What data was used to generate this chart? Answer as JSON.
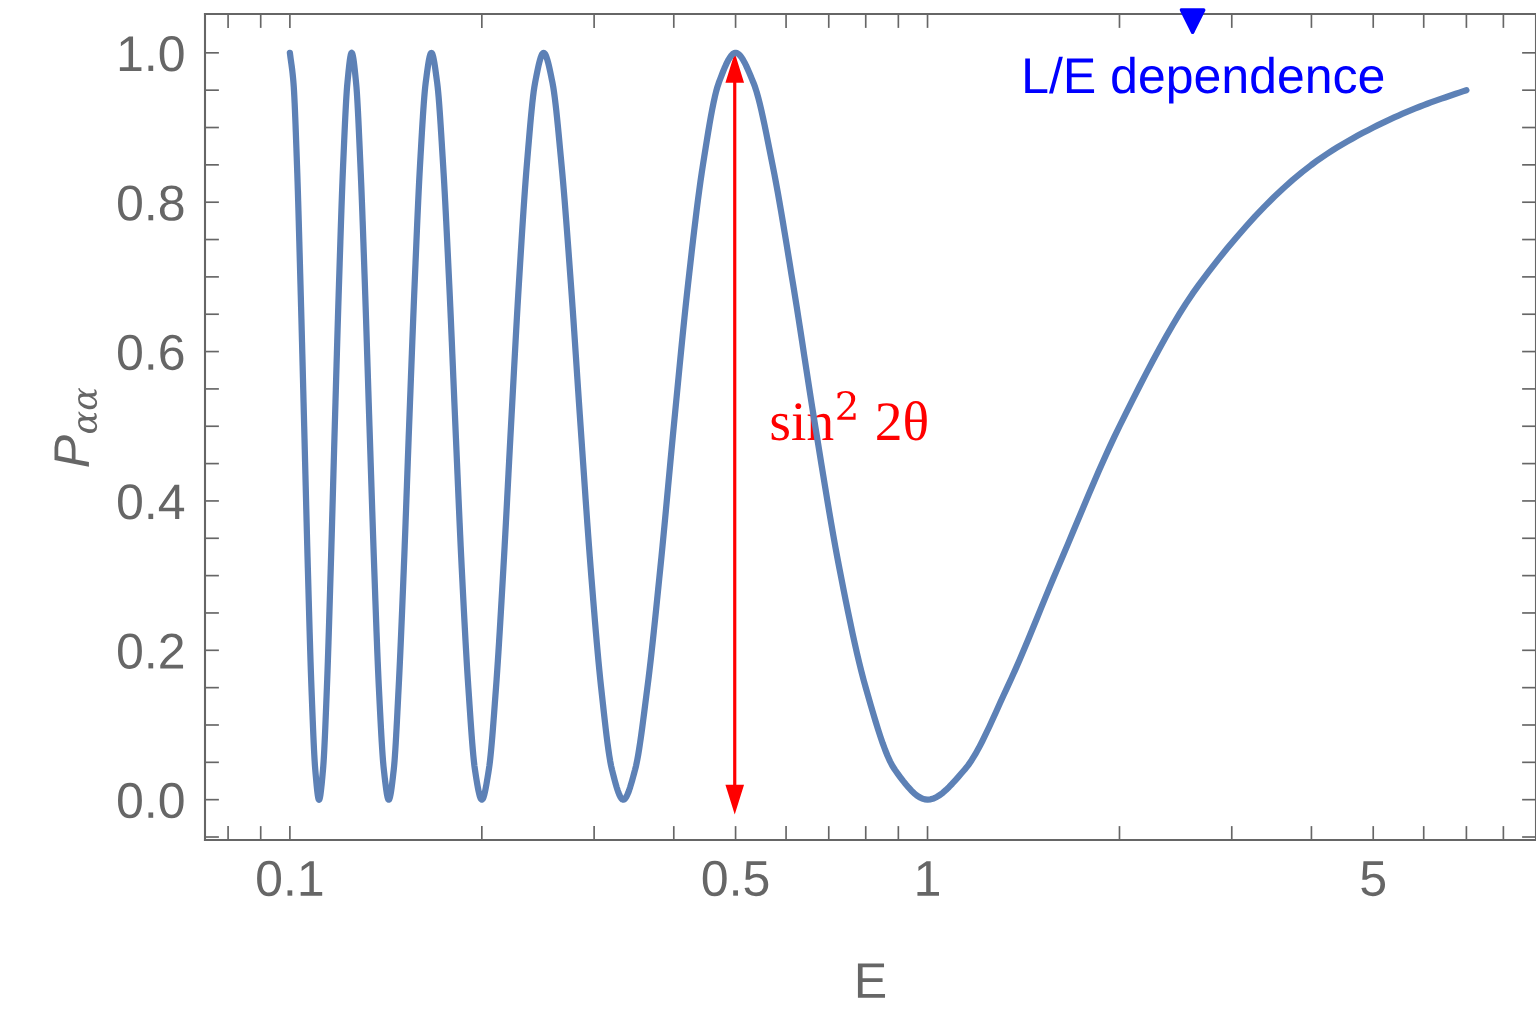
{
  "chart_data": {
    "type": "line",
    "xlabel": "E",
    "ylabel": "P$_{αα}$",
    "log": "x",
    "xlim": [
      0.0736,
      9
    ],
    "ylim": [
      -0.054,
      1.052
    ],
    "xticks": [
      {
        "value": 0.08,
        "label": null
      },
      {
        "value": 0.09,
        "label": null
      },
      0.1,
      {
        "value": 0.2,
        "label": null
      },
      {
        "value": 0.3,
        "label": null
      },
      {
        "value": 0.4,
        "label": null
      },
      0.5,
      {
        "value": 0.6,
        "label": null
      },
      {
        "value": 0.7,
        "label": null
      },
      {
        "value": 0.8,
        "label": null
      },
      {
        "value": 0.9,
        "label": null
      },
      1,
      {
        "value": 2,
        "label": null
      },
      {
        "value": 3,
        "label": null
      },
      {
        "value": 4,
        "label": null
      },
      5,
      {
        "value": 6,
        "label": null
      },
      {
        "value": 7,
        "label": null
      },
      {
        "value": 8,
        "label": null
      },
      {
        "value": 9,
        "label": null
      }
    ],
    "yticks": [
      {
        "value": -0.05,
        "label": null
      },
      {
        "value": 0,
        "label": "0.0"
      },
      {
        "value": 0.05,
        "label": null
      },
      {
        "value": 0.1,
        "label": null
      },
      {
        "value": 0.15,
        "label": null
      },
      0.2,
      {
        "value": 0.25,
        "label": null
      },
      {
        "value": 0.3,
        "label": null
      },
      {
        "value": 0.35,
        "label": null
      },
      0.4,
      {
        "value": 0.45,
        "label": null
      },
      {
        "value": 0.5,
        "label": null
      },
      {
        "value": 0.55,
        "label": null
      },
      0.6,
      {
        "value": 0.65,
        "label": null
      },
      {
        "value": 0.7,
        "label": null
      },
      {
        "value": 0.75,
        "label": null
      },
      0.8,
      {
        "value": 0.85,
        "label": null
      },
      {
        "value": 0.9,
        "label": null
      },
      {
        "value": 0.95,
        "label": null
      },
      {
        "value": 1,
        "label": "1.0"
      }
    ],
    "grid": false,
    "legend": false,
    "series": [
      {
        "color": "#5d81b6",
        "x": [
          0.1,
          0.1013,
          0.1026,
          0.1039,
          0.1053,
          0.1067,
          0.1081,
          0.1096,
          0.1111,
          0.1127,
          0.1143,
          0.1159,
          0.1176,
          0.1194,
          0.1212,
          0.1231,
          0.125,
          0.127,
          0.129,
          0.1311,
          0.1333,
          0.1356,
          0.1379,
          0.1404,
          0.1429,
          0.1455,
          0.1481,
          0.1509,
          0.1538,
          0.1569,
          0.16,
          0.1633,
          0.1667,
          0.1702,
          0.1739,
          0.1778,
          0.1818,
          0.186,
          0.1905,
          0.1951,
          0.2,
          0.2051,
          0.2105,
          0.2162,
          0.2222,
          0.2286,
          0.2353,
          0.2424,
          0.25,
          0.2581,
          0.2667,
          0.2759,
          0.2857,
          0.2963,
          0.3077,
          0.32,
          0.3333,
          0.3478,
          0.3636,
          0.381,
          0.4,
          0.4211,
          0.4444,
          0.4706,
          0.5,
          0.5333,
          0.5714,
          0.6154,
          0.6667,
          0.7273,
          0.8,
          0.8889,
          1,
          1.143,
          1.333,
          1.6,
          2,
          2.667,
          4,
          5,
          6,
          7
        ],
        "values": [
          1,
          0.96,
          0.85,
          0.69,
          0.5,
          0.31,
          0.15,
          0.04,
          0,
          0.04,
          0.15,
          0.31,
          0.5,
          0.69,
          0.85,
          0.96,
          1,
          0.96,
          0.85,
          0.69,
          0.5,
          0.31,
          0.15,
          0.04,
          0,
          0.04,
          0.15,
          0.31,
          0.5,
          0.69,
          0.85,
          0.96,
          1,
          0.96,
          0.85,
          0.69,
          0.5,
          0.31,
          0.15,
          0.04,
          0,
          0.04,
          0.15,
          0.31,
          0.5,
          0.69,
          0.85,
          0.96,
          1,
          0.96,
          0.85,
          0.69,
          0.5,
          0.31,
          0.15,
          0.04,
          0,
          0.04,
          0.15,
          0.31,
          0.5,
          0.69,
          0.85,
          0.96,
          1,
          0.96,
          0.85,
          0.69,
          0.5,
          0.31,
          0.15,
          0.04,
          0,
          0.04,
          0.15,
          0.31,
          0.5,
          0.69,
          0.85,
          0.9,
          0.93,
          0.95
        ]
      }
    ],
    "annotations": [
      "sin$^{2}$ 2θ",
      "L/E dependence"
    ]
  }
}
